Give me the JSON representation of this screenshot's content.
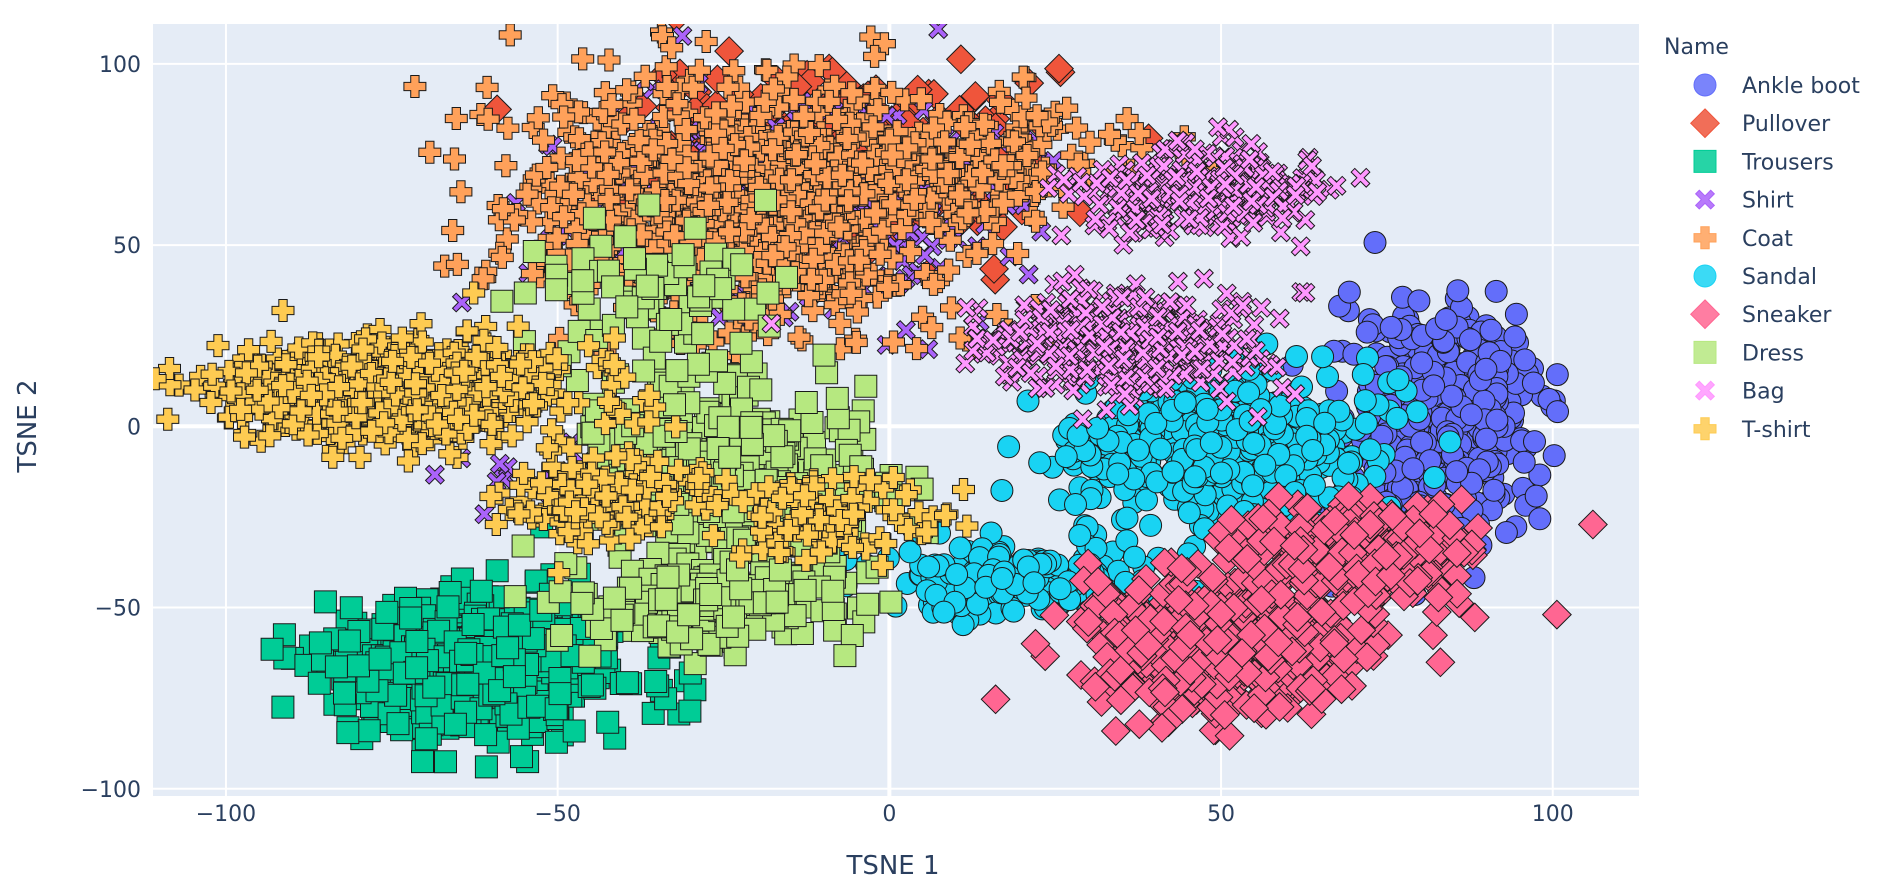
{
  "chart_data": {
    "type": "scatter",
    "xlabel": "TSNE 1",
    "ylabel": "TSNE 2",
    "xlim": [
      -111,
      113
    ],
    "ylim": [
      -102,
      111
    ],
    "x_ticks": [
      -100,
      -50,
      0,
      50,
      100
    ],
    "y_ticks": [
      -100,
      -50,
      0,
      50,
      100
    ],
    "x_tick_labels": [
      "−100",
      "−50",
      "0",
      "50",
      "100"
    ],
    "y_tick_labels": [
      "−100",
      "−50",
      "0",
      "50",
      "100"
    ],
    "grid": true,
    "plot_background": "#E5ECF6",
    "marker_outline": "#1a1a1a",
    "legend": {
      "title": "Name",
      "placement": "right"
    },
    "series": [
      {
        "name": "Ankle boot",
        "symbol": "circle",
        "color": "#636EFA",
        "clusters": [
          {
            "cx": 84,
            "cy": 5,
            "sx": 7,
            "sy": 13,
            "n": 500
          },
          {
            "cx": 78,
            "cy": -25,
            "sx": 6,
            "sy": 8,
            "n": 150
          }
        ]
      },
      {
        "name": "Pullover",
        "symbol": "diamond",
        "color": "#EF553B",
        "clusters": [
          {
            "cx": -12,
            "cy": 72,
            "sx": 15,
            "sy": 13,
            "n": 350
          }
        ]
      },
      {
        "name": "Trousers",
        "symbol": "square",
        "color": "#00CC96",
        "clusters": [
          {
            "cx": -62,
            "cy": -66,
            "sx": 11,
            "sy": 10,
            "n": 600
          }
        ]
      },
      {
        "name": "Shirt",
        "symbol": "x",
        "color": "#AB63FA",
        "clusters": [
          {
            "cx": -15,
            "cy": 60,
            "sx": 16,
            "sy": 15,
            "n": 350
          },
          {
            "cx": -40,
            "cy": -15,
            "sx": 12,
            "sy": 6,
            "n": 80
          }
        ]
      },
      {
        "name": "Coat",
        "symbol": "cross",
        "color": "#FFA15A",
        "clusters": [
          {
            "cx": -22,
            "cy": 60,
            "sx": 17,
            "sy": 17,
            "n": 900
          },
          {
            "cx": 15,
            "cy": 75,
            "sx": 12,
            "sy": 8,
            "n": 150
          }
        ]
      },
      {
        "name": "Sandal",
        "symbol": "circle",
        "color": "#19D3F3",
        "clusters": [
          {
            "cx": 50,
            "cy": -5,
            "sx": 11,
            "sy": 11,
            "n": 500
          },
          {
            "cx": 20,
            "cy": -42,
            "sx": 10,
            "sy": 5,
            "n": 200
          }
        ]
      },
      {
        "name": "Sneaker",
        "symbol": "diamond",
        "color": "#FF6692",
        "clusters": [
          {
            "cx": 50,
            "cy": -60,
            "sx": 10,
            "sy": 9,
            "n": 600
          },
          {
            "cx": 72,
            "cy": -36,
            "sx": 9,
            "sy": 7,
            "n": 300
          }
        ]
      },
      {
        "name": "Dress",
        "symbol": "square",
        "color": "#B6E880",
        "clusters": [
          {
            "cx": -23,
            "cy": -13,
            "sx": 10,
            "sy": 12,
            "n": 450
          },
          {
            "cx": -28,
            "cy": -48,
            "sx": 10,
            "sy": 6,
            "n": 250
          },
          {
            "cx": -38,
            "cy": 38,
            "sx": 10,
            "sy": 10,
            "n": 80
          }
        ]
      },
      {
        "name": "Bag",
        "symbol": "x",
        "color": "#FF97FF",
        "clusters": [
          {
            "cx": 47,
            "cy": 65,
            "sx": 9,
            "sy": 6,
            "n": 300
          },
          {
            "cx": 35,
            "cy": 23,
            "sx": 11,
            "sy": 7,
            "n": 350
          }
        ]
      },
      {
        "name": "T-shirt",
        "symbol": "cross",
        "color": "#FECB52",
        "clusters": [
          {
            "cx": -74,
            "cy": 10,
            "sx": 13,
            "sy": 7,
            "n": 700
          },
          {
            "cx": -42,
            "cy": -20,
            "sx": 7,
            "sy": 6,
            "n": 150
          },
          {
            "cx": -12,
            "cy": -25,
            "sx": 10,
            "sy": 6,
            "n": 100
          }
        ]
      }
    ]
  }
}
